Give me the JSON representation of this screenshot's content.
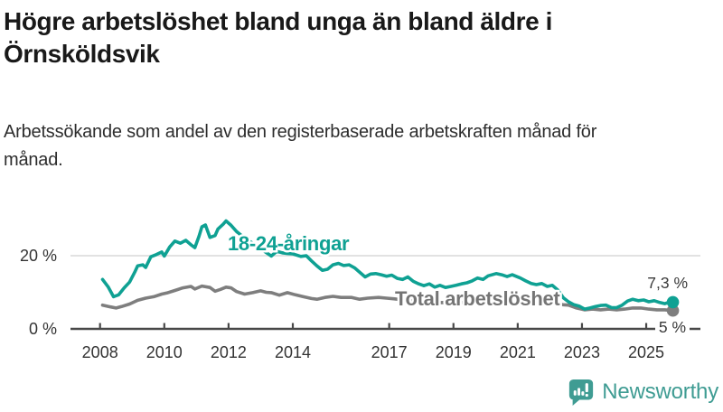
{
  "chart_data": {
    "type": "line",
    "title": "Högre arbetslöshet bland unga än bland äldre i Örnsköldsvik",
    "subtitle": "Arbetssökande som andel av den registerbaserade arbetskraften månad för månad.",
    "xlabel": "",
    "ylabel": "",
    "ylim": [
      0,
      30
    ],
    "xlim": [
      2007.2,
      2026.6
    ],
    "grid": "single-horizontal-gridline-at-20",
    "legend_position": "inline-labels-on-chart",
    "x_ticks": [
      {
        "year": 2008,
        "label": "2008"
      },
      {
        "year": 2010,
        "label": "2010"
      },
      {
        "year": 2012,
        "label": "2012"
      },
      {
        "year": 2014,
        "label": "2014"
      },
      {
        "year": 2017,
        "label": "2017"
      },
      {
        "year": 2019,
        "label": "2019"
      },
      {
        "year": 2021,
        "label": "2021"
      },
      {
        "year": 2023,
        "label": "2023"
      },
      {
        "year": 2025,
        "label": "2025"
      }
    ],
    "y_ticks": [
      {
        "value": 0,
        "label": "0 %"
      },
      {
        "value": 20,
        "label": "20 %"
      }
    ],
    "series": [
      {
        "id": "total",
        "name": "Total arbetslöshet",
        "color": "#7e7e7e",
        "label_color": "#757575",
        "end_label": "5 %",
        "end_value": 5.0,
        "points": [
          [
            2008.08,
            6.5
          ],
          [
            2008.33,
            6.0
          ],
          [
            2008.5,
            5.7
          ],
          [
            2008.67,
            6.1
          ],
          [
            2008.92,
            6.8
          ],
          [
            2009.17,
            7.8
          ],
          [
            2009.42,
            8.4
          ],
          [
            2009.67,
            8.8
          ],
          [
            2009.92,
            9.5
          ],
          [
            2010.08,
            9.8
          ],
          [
            2010.33,
            10.5
          ],
          [
            2010.58,
            11.2
          ],
          [
            2010.83,
            11.6
          ],
          [
            2010.95,
            10.9
          ],
          [
            2011.17,
            11.7
          ],
          [
            2011.42,
            11.3
          ],
          [
            2011.58,
            10.3
          ],
          [
            2011.75,
            10.8
          ],
          [
            2011.92,
            11.4
          ],
          [
            2012.08,
            11.2
          ],
          [
            2012.25,
            10.2
          ],
          [
            2012.5,
            9.5
          ],
          [
            2012.75,
            9.9
          ],
          [
            2013.0,
            10.4
          ],
          [
            2013.17,
            10.0
          ],
          [
            2013.33,
            9.9
          ],
          [
            2013.58,
            9.2
          ],
          [
            2013.83,
            9.9
          ],
          [
            2014.08,
            9.3
          ],
          [
            2014.33,
            8.8
          ],
          [
            2014.58,
            8.3
          ],
          [
            2014.75,
            8.1
          ],
          [
            2015.0,
            8.6
          ],
          [
            2015.25,
            8.9
          ],
          [
            2015.5,
            8.6
          ],
          [
            2015.83,
            8.6
          ],
          [
            2016.08,
            8.1
          ],
          [
            2016.33,
            8.4
          ],
          [
            2016.67,
            8.6
          ],
          [
            2016.92,
            8.4
          ],
          [
            2017.17,
            8.2
          ],
          [
            2017.42,
            7.9
          ],
          [
            2017.67,
            7.7
          ],
          [
            2017.92,
            7.5
          ],
          [
            2018.17,
            7.3
          ],
          [
            2018.42,
            7.1
          ],
          [
            2018.67,
            7.2
          ],
          [
            2018.92,
            7.1
          ],
          [
            2019.17,
            7.2
          ],
          [
            2019.42,
            7.3
          ],
          [
            2019.67,
            7.5
          ],
          [
            2019.92,
            7.7
          ],
          [
            2020.17,
            8.3
          ],
          [
            2020.42,
            9.0
          ],
          [
            2020.67,
            8.8
          ],
          [
            2020.92,
            8.6
          ],
          [
            2021.17,
            8.3
          ],
          [
            2021.42,
            7.9
          ],
          [
            2021.67,
            7.6
          ],
          [
            2021.92,
            7.1
          ],
          [
            2022.17,
            6.9
          ],
          [
            2022.42,
            6.6
          ],
          [
            2022.58,
            6.5
          ],
          [
            2022.83,
            5.7
          ],
          [
            2023.08,
            5.2
          ],
          [
            2023.33,
            5.4
          ],
          [
            2023.58,
            5.2
          ],
          [
            2023.83,
            5.4
          ],
          [
            2024.08,
            5.2
          ],
          [
            2024.33,
            5.4
          ],
          [
            2024.58,
            5.7
          ],
          [
            2024.83,
            5.7
          ],
          [
            2025.08,
            5.4
          ],
          [
            2025.33,
            5.2
          ],
          [
            2025.58,
            5.2
          ],
          [
            2025.83,
            5.0
          ]
        ]
      },
      {
        "id": "youth",
        "name": "18-24-åringar",
        "color": "#0fa193",
        "label_color": "#0fa193",
        "end_label": "7,3 %",
        "end_value": 7.3,
        "points": [
          [
            2008.08,
            13.5
          ],
          [
            2008.25,
            11.5
          ],
          [
            2008.42,
            8.8
          ],
          [
            2008.58,
            9.3
          ],
          [
            2008.75,
            11.2
          ],
          [
            2008.92,
            12.8
          ],
          [
            2009.08,
            15.5
          ],
          [
            2009.17,
            17.2
          ],
          [
            2009.33,
            17.5
          ],
          [
            2009.42,
            16.8
          ],
          [
            2009.58,
            19.7
          ],
          [
            2009.75,
            20.3
          ],
          [
            2009.92,
            21.0
          ],
          [
            2010.0,
            19.9
          ],
          [
            2010.17,
            22.4
          ],
          [
            2010.33,
            24.0
          ],
          [
            2010.5,
            23.4
          ],
          [
            2010.67,
            24.2
          ],
          [
            2010.83,
            23.0
          ],
          [
            2010.95,
            22.2
          ],
          [
            2011.08,
            25.3
          ],
          [
            2011.17,
            27.9
          ],
          [
            2011.28,
            28.4
          ],
          [
            2011.42,
            25.0
          ],
          [
            2011.58,
            25.5
          ],
          [
            2011.67,
            27.3
          ],
          [
            2011.83,
            28.6
          ],
          [
            2011.92,
            29.5
          ],
          [
            2012.08,
            28.3
          ],
          [
            2012.25,
            26.6
          ],
          [
            2012.42,
            25.4
          ],
          [
            2012.58,
            24.4
          ],
          [
            2012.75,
            23.4
          ],
          [
            2012.92,
            22.4
          ],
          [
            2013.08,
            21.4
          ],
          [
            2013.33,
            19.9
          ],
          [
            2013.5,
            21.2
          ],
          [
            2013.67,
            20.8
          ],
          [
            2013.83,
            20.6
          ],
          [
            2014.0,
            20.5
          ],
          [
            2014.25,
            19.8
          ],
          [
            2014.42,
            20.0
          ],
          [
            2014.58,
            18.6
          ],
          [
            2014.75,
            17.2
          ],
          [
            2014.92,
            16.0
          ],
          [
            2015.08,
            16.3
          ],
          [
            2015.25,
            17.5
          ],
          [
            2015.42,
            17.9
          ],
          [
            2015.58,
            17.3
          ],
          [
            2015.75,
            17.5
          ],
          [
            2015.92,
            16.7
          ],
          [
            2016.08,
            15.5
          ],
          [
            2016.25,
            14.2
          ],
          [
            2016.42,
            15.0
          ],
          [
            2016.58,
            15.1
          ],
          [
            2016.75,
            14.8
          ],
          [
            2016.92,
            14.4
          ],
          [
            2017.08,
            14.7
          ],
          [
            2017.25,
            13.8
          ],
          [
            2017.42,
            13.5
          ],
          [
            2017.58,
            14.2
          ],
          [
            2017.75,
            13.0
          ],
          [
            2017.92,
            12.3
          ],
          [
            2018.08,
            11.8
          ],
          [
            2018.25,
            12.3
          ],
          [
            2018.42,
            11.4
          ],
          [
            2018.58,
            11.9
          ],
          [
            2018.75,
            11.3
          ],
          [
            2018.92,
            11.6
          ],
          [
            2019.08,
            11.9
          ],
          [
            2019.25,
            12.3
          ],
          [
            2019.42,
            12.6
          ],
          [
            2019.58,
            13.1
          ],
          [
            2019.75,
            13.9
          ],
          [
            2019.92,
            13.5
          ],
          [
            2020.08,
            14.5
          ],
          [
            2020.33,
            15.1
          ],
          [
            2020.5,
            14.8
          ],
          [
            2020.67,
            14.3
          ],
          [
            2020.83,
            14.8
          ],
          [
            2021.08,
            13.9
          ],
          [
            2021.25,
            13.1
          ],
          [
            2021.42,
            12.4
          ],
          [
            2021.58,
            12.1
          ],
          [
            2021.75,
            12.4
          ],
          [
            2021.92,
            11.6
          ],
          [
            2022.08,
            11.9
          ],
          [
            2022.25,
            10.6
          ],
          [
            2022.42,
            8.5
          ],
          [
            2022.58,
            7.4
          ],
          [
            2022.75,
            6.6
          ],
          [
            2022.92,
            6.2
          ],
          [
            2023.08,
            5.4
          ],
          [
            2023.25,
            5.7
          ],
          [
            2023.42,
            6.1
          ],
          [
            2023.58,
            6.4
          ],
          [
            2023.75,
            6.5
          ],
          [
            2023.92,
            5.8
          ],
          [
            2024.08,
            5.8
          ],
          [
            2024.25,
            6.5
          ],
          [
            2024.42,
            7.6
          ],
          [
            2024.58,
            8.1
          ],
          [
            2024.75,
            7.7
          ],
          [
            2024.92,
            7.9
          ],
          [
            2025.08,
            7.4
          ],
          [
            2025.25,
            7.7
          ],
          [
            2025.42,
            7.2
          ],
          [
            2025.58,
            6.9
          ],
          [
            2025.75,
            7.4
          ],
          [
            2025.83,
            7.3
          ]
        ]
      }
    ],
    "colors": {
      "youth_teal": "#0fa193",
      "total_gray": "#7e7e7e",
      "axis": "#484848",
      "gridline": "#d9d9d9",
      "tick_label": "#333333",
      "end_label_text": "#3a3a3a"
    }
  },
  "branding": {
    "logo_text": "Newsworthy",
    "logo_color": "#3f9c93",
    "logo_icon": "speech-bubble-bar-chart-exclamation"
  }
}
